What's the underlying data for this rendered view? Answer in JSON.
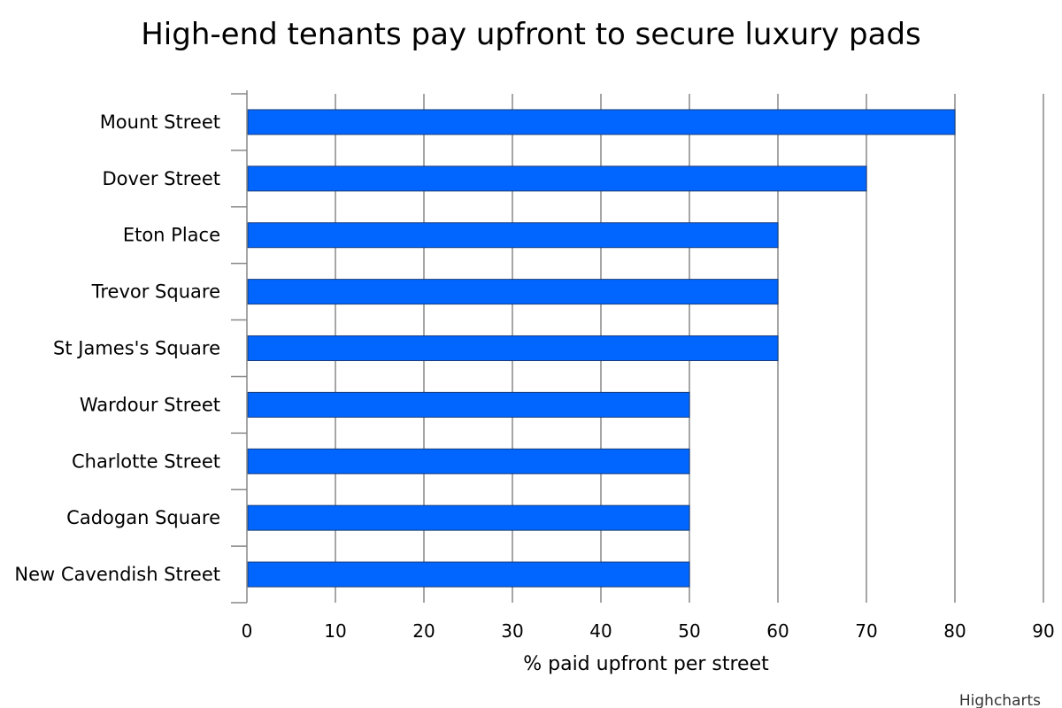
{
  "chart_data": {
    "type": "bar",
    "orientation": "horizontal",
    "title": "High-end tenants pay upfront to secure luxury pads",
    "xlabel": "% paid upfront per street",
    "categories": [
      "Mount Street",
      "Dover Street",
      "Eton Place",
      "Trevor Square",
      "St James's Square",
      "Wardour Street",
      "Charlotte Street",
      "Cadogan Square",
      "New Cavendish Street"
    ],
    "series": [
      {
        "values": [
          80,
          70,
          60,
          60,
          60,
          50,
          50,
          50,
          50
        ],
        "color": "#0066ff"
      }
    ],
    "xlim": [
      0,
      90
    ],
    "ticks": [
      "0",
      "10",
      "20",
      "30",
      "40",
      "50",
      "60",
      "70",
      "80",
      "90"
    ],
    "grid": true
  },
  "credits": "Highcharts"
}
